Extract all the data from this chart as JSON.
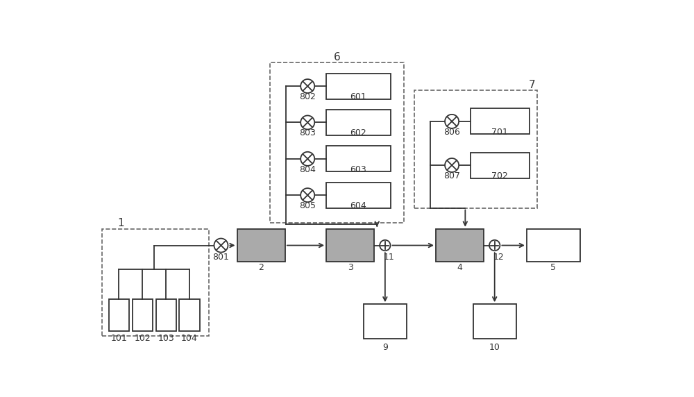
{
  "bg_color": "#ffffff",
  "gray_fill": "#aaaaaa",
  "white_fill": "#ffffff",
  "ec": "#333333",
  "dashed_ec": "#666666",
  "arrow_color": "#333333",
  "fs_label": 9,
  "fs_group": 11,
  "lw": 1.3
}
